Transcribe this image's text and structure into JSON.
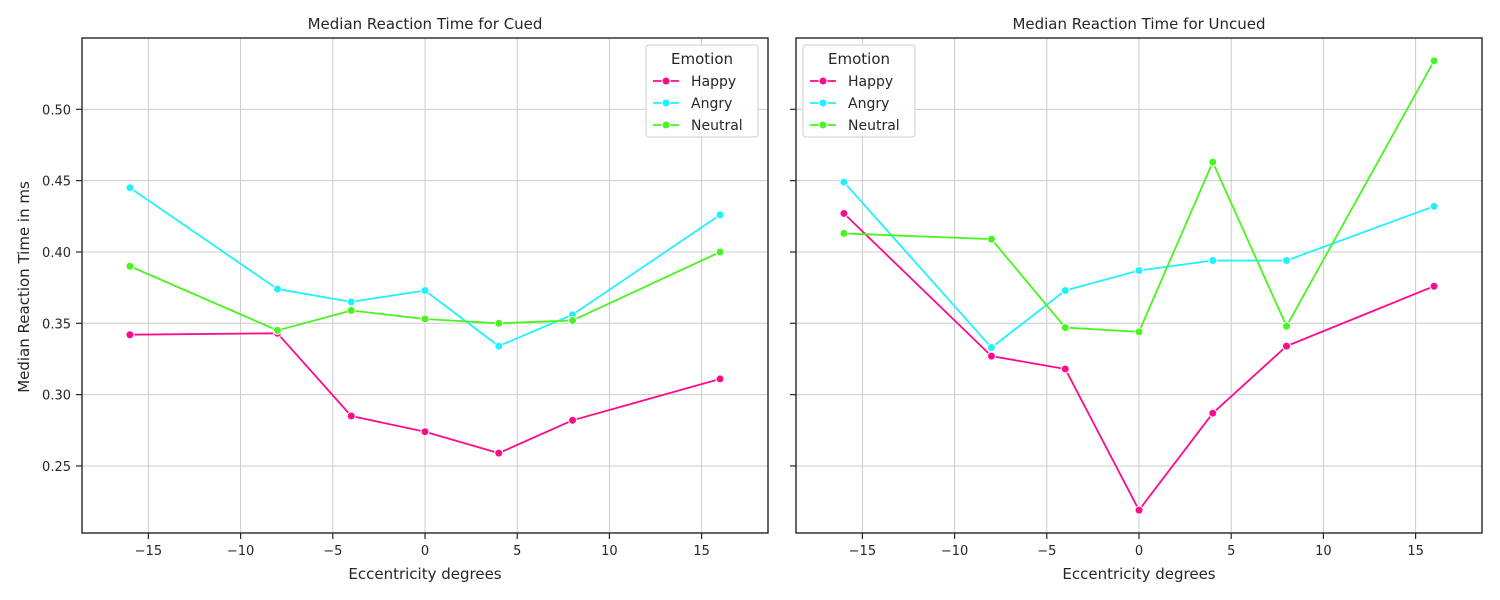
{
  "figure": {
    "shared_ylabel": "Median Reaction Time in ms"
  },
  "series_colors": {
    "Happy": "#ff0a8c",
    "Angry": "#1ff2ff",
    "Neutral": "#48f51e"
  },
  "chart_data": [
    {
      "type": "line",
      "title": "Median Reaction Time for Cued",
      "xlabel": "Eccentricity degrees",
      "ylabel": "Median Reaction Time in ms",
      "x": [
        -16,
        -8,
        -4,
        0,
        4,
        8,
        16
      ],
      "xlim": [
        -18.6,
        18.6
      ],
      "ylim": [
        0.203,
        0.55
      ],
      "xticks": [
        -15,
        -10,
        -5,
        0,
        5,
        10,
        15
      ],
      "xtick_labels": [
        "−15",
        "−10",
        "−5",
        "0",
        "5",
        "10",
        "15"
      ],
      "yticks": [
        0.25,
        0.3,
        0.35,
        0.4,
        0.45,
        0.5
      ],
      "ytick_labels": [
        "0.25",
        "0.30",
        "0.35",
        "0.40",
        "0.45",
        "0.50"
      ],
      "grid": true,
      "legend": {
        "title": "Emotion",
        "placement": "top-right"
      },
      "series": [
        {
          "name": "Happy",
          "values": [
            0.342,
            0.343,
            0.285,
            0.274,
            0.259,
            0.282,
            0.311
          ]
        },
        {
          "name": "Angry",
          "values": [
            0.445,
            0.374,
            0.365,
            0.373,
            0.334,
            0.356,
            0.426
          ]
        },
        {
          "name": "Neutral",
          "values": [
            0.39,
            0.345,
            0.359,
            0.353,
            0.35,
            0.352,
            0.4
          ]
        }
      ]
    },
    {
      "type": "line",
      "title": "Median Reaction Time for Uncued",
      "xlabel": "Eccentricity degrees",
      "ylabel": "",
      "x": [
        -16,
        -8,
        -4,
        0,
        4,
        8,
        16
      ],
      "xlim": [
        -18.6,
        18.6
      ],
      "ylim": [
        0.203,
        0.55
      ],
      "xticks": [
        -15,
        -10,
        -5,
        0,
        5,
        10,
        15
      ],
      "xtick_labels": [
        "−15",
        "−10",
        "−5",
        "0",
        "5",
        "10",
        "15"
      ],
      "yticks": [
        0.25,
        0.3,
        0.35,
        0.4,
        0.45,
        0.5
      ],
      "ytick_labels": [],
      "grid": true,
      "legend": {
        "title": "Emotion",
        "placement": "top-left"
      },
      "series": [
        {
          "name": "Happy",
          "values": [
            0.427,
            0.327,
            0.318,
            0.219,
            0.287,
            0.334,
            0.376
          ]
        },
        {
          "name": "Angry",
          "values": [
            0.449,
            0.333,
            0.373,
            0.387,
            0.394,
            0.394,
            0.432
          ]
        },
        {
          "name": "Neutral",
          "values": [
            0.413,
            0.409,
            0.347,
            0.344,
            0.463,
            0.348,
            0.534
          ]
        }
      ]
    }
  ]
}
